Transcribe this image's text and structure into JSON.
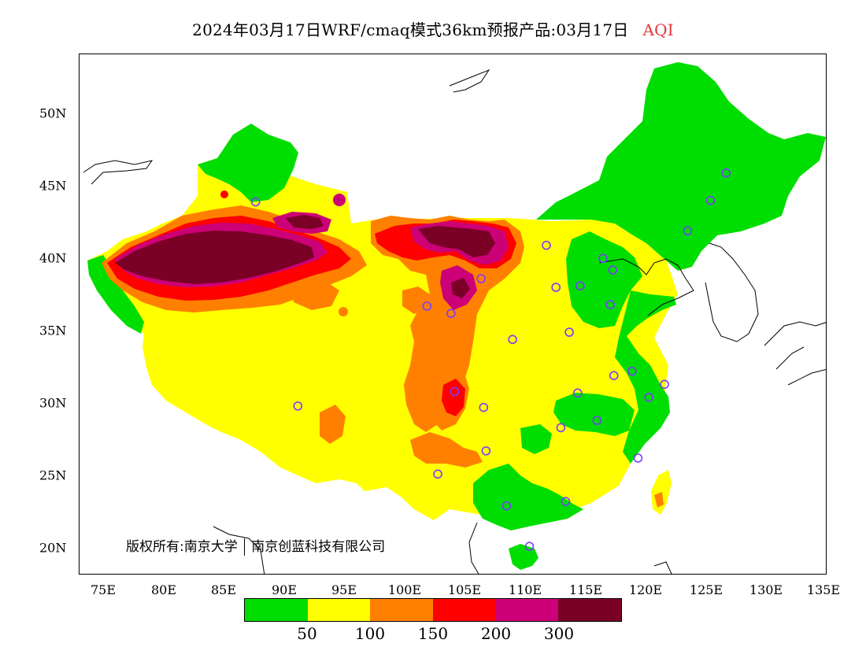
{
  "title": {
    "text": "2024年03月17日WRF/cmaq模式36km预报产品:03月17日",
    "variable": "AQI"
  },
  "axes": {
    "y_labels": [
      "50N",
      "45N",
      "40N",
      "35N",
      "30N",
      "25N",
      "20N"
    ],
    "x_labels": [
      "75E",
      "80E",
      "85E",
      "90E",
      "95E",
      "100E",
      "105E",
      "110E",
      "115E",
      "120E",
      "125E",
      "130E",
      "135E"
    ],
    "lon_range": [
      73,
      135
    ],
    "lat_range": [
      18,
      54
    ]
  },
  "copyright": {
    "part1": "版权所有:南京大学",
    "part2": "南京创蓝科技有限公司"
  },
  "legend": {
    "colors": [
      "#00dd00",
      "#ffff00",
      "#ff8000",
      "#ff0000",
      "#cc0077",
      "#7a0025"
    ],
    "labels": [
      "50",
      "100",
      "150",
      "200",
      "300"
    ]
  },
  "colors": {
    "good": "#00dd00",
    "moderate": "#ffff00",
    "usg": "#ff8000",
    "unhealthy": "#ff0000",
    "very_unhealthy": "#cc0077",
    "hazardous": "#7a0025",
    "station_marker": "#7a3cff"
  },
  "stations": [
    [
      126.6,
      45.8
    ],
    [
      125.3,
      43.9
    ],
    [
      123.4,
      41.8
    ],
    [
      116.4,
      39.9
    ],
    [
      117.2,
      39.1
    ],
    [
      114.5,
      38.0
    ],
    [
      112.5,
      37.9
    ],
    [
      111.7,
      40.8
    ],
    [
      106.3,
      38.5
    ],
    [
      103.8,
      36.1
    ],
    [
      101.8,
      36.6
    ],
    [
      108.9,
      34.3
    ],
    [
      113.6,
      34.8
    ],
    [
      117.0,
      36.7
    ],
    [
      117.3,
      31.8
    ],
    [
      118.8,
      32.1
    ],
    [
      120.2,
      30.3
    ],
    [
      121.5,
      31.2
    ],
    [
      114.3,
      30.6
    ],
    [
      112.9,
      28.2
    ],
    [
      115.9,
      28.7
    ],
    [
      119.3,
      26.1
    ],
    [
      113.3,
      23.1
    ],
    [
      108.4,
      22.8
    ],
    [
      110.3,
      20.0
    ],
    [
      106.7,
      26.6
    ],
    [
      102.7,
      25.0
    ],
    [
      104.1,
      30.7
    ],
    [
      106.5,
      29.6
    ],
    [
      91.1,
      29.7
    ],
    [
      87.6,
      43.8
    ]
  ]
}
